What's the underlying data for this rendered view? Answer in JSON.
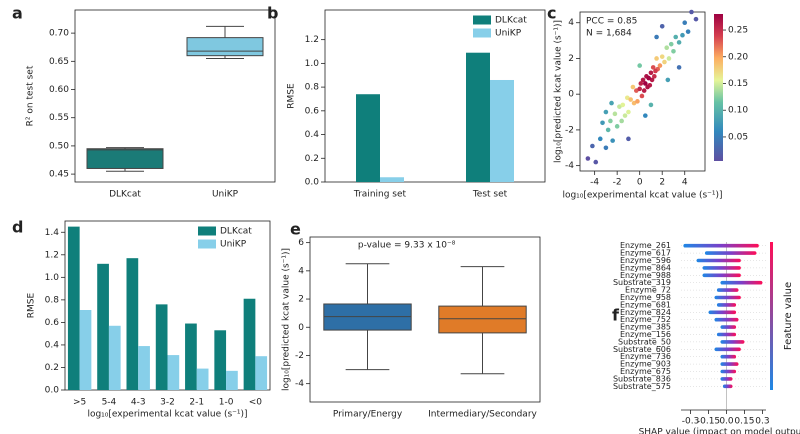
{
  "chart_data": [
    {
      "type": "box",
      "label": "a",
      "ylabel": "R² on test set",
      "categories": [
        "DLKcat",
        "UniKP"
      ],
      "colors": [
        "#1b7b77",
        "#7fc8e0"
      ],
      "boxes": [
        {
          "min": 0.455,
          "q1": 0.46,
          "median": 0.493,
          "q3": 0.495,
          "max": 0.497
        },
        {
          "min": 0.655,
          "q1": 0.66,
          "median": 0.668,
          "q3": 0.692,
          "max": 0.712
        }
      ],
      "ylim": [
        0.436,
        0.741
      ],
      "yticks": [
        0.45,
        {
          "value": 0.5,
          "label": "0.50"
        },
        0.55,
        {
          "value": 0.6,
          "label": "0.60"
        },
        0.65,
        {
          "value": 0.7,
          "label": "0.70"
        }
      ]
    },
    {
      "type": "bar",
      "label": "b",
      "ylabel": "RMSE",
      "categories": [
        "Training set",
        "Test set"
      ],
      "series": [
        {
          "name": "DLKcat",
          "color": "#0f7f7b",
          "values": [
            0.74,
            1.09
          ]
        },
        {
          "name": "UniKP",
          "color": "#87cfe9",
          "values": [
            0.04,
            0.86
          ]
        }
      ],
      "ylim": [
        0,
        1.45
      ],
      "yticks": [
        {
          "value": 0,
          "label": "0.0"
        },
        0.2,
        0.4,
        0.6,
        0.8,
        {
          "value": 1,
          "label": "1.0"
        },
        1.2
      ],
      "legend": "upper right"
    },
    {
      "type": "scatter",
      "label": "c",
      "annotations": [
        "PCC = 0.85",
        "N = 1,684"
      ],
      "xlabel": "log₁₀[experimental kcat value (s⁻¹)]",
      "ylabel": "log₁₀[predicted kcat value (s⁻¹)]",
      "x": [
        -4.6,
        -4.2,
        -3.9,
        -3.5,
        -3.3,
        -3.0,
        -2.8,
        -2.6,
        -2.4,
        -2.2,
        -2.0,
        -1.8,
        -1.6,
        -1.5,
        -1.3,
        -1.1,
        -1.0,
        -0.8,
        -0.6,
        -0.5,
        -0.3,
        -0.2,
        0,
        0.1,
        0.2,
        0.3,
        0.4,
        0.5,
        0.6,
        0.7,
        0.8,
        0.9,
        1.0,
        1.1,
        1.2,
        1.3,
        1.4,
        1.5,
        1.6,
        1.8,
        2.0,
        2.2,
        2.4,
        2.6,
        2.8,
        3.0,
        3.2,
        3.5,
        3.8,
        4.0,
        4.3,
        4.6,
        5.0,
        -2.5,
        -1.0,
        0.5,
        1.5,
        2.5,
        3.5,
        -3.0,
        0,
        1.0,
        2.0
      ],
      "y": [
        -3.6,
        -2.9,
        -3.8,
        -2.5,
        -1.6,
        -3.0,
        -2.0,
        -1.5,
        -2.6,
        -1.1,
        -1.8,
        -0.7,
        -1.5,
        -0.6,
        -1.2,
        -0.2,
        -1.0,
        -0.3,
        0.4,
        -0.5,
        0.2,
        -0.4,
        0.3,
        0.6,
        -0.1,
        0.8,
        0.2,
        0.6,
        1.0,
        0.4,
        0.9,
        0.5,
        1.2,
        0.8,
        1.5,
        1.0,
        1.3,
        2.0,
        1.4,
        1.6,
        2.1,
        1.8,
        2.6,
        2.0,
        2.8,
        2.4,
        3.2,
        2.9,
        3.3,
        4.0,
        3.5,
        4.6,
        4.2,
        -0.5,
        -2.5,
        -1.2,
        3.2,
        0.8,
        1.5,
        -1.0,
        1.6,
        -0.6,
        3.8
      ],
      "xlim": [
        -5.3,
        5.8
      ],
      "xticks": [
        -4,
        -2,
        0,
        2,
        4
      ],
      "ylim": [
        -4.3,
        4.6
      ],
      "yticks": [
        -4,
        -2,
        0,
        2,
        4
      ],
      "colorbar_lim": [
        0.005,
        0.28
      ],
      "colorbar_ticks": [
        0.05,
        {
          "value": 0.1,
          "label": "0.10"
        },
        0.15,
        {
          "value": 0.2,
          "label": "0.20"
        },
        0.25
      ]
    },
    {
      "type": "bar",
      "label": "d",
      "ylabel": "RMSE",
      "xlabel": "log₁₀[experimental kcat value (s⁻¹)]",
      "categories": [
        ">5",
        "5-4",
        "4-3",
        "3-2",
        "2-1",
        "1-0",
        "<0"
      ],
      "series": [
        {
          "name": "DLKcat",
          "color": "#0f7f7b",
          "values": [
            1.45,
            1.12,
            1.17,
            0.76,
            0.59,
            0.53,
            0.81
          ]
        },
        {
          "name": "UniKP",
          "color": "#87cfe9",
          "values": [
            0.71,
            0.57,
            0.39,
            0.31,
            0.19,
            0.17,
            0.3
          ]
        }
      ],
      "ylim": [
        0,
        1.5
      ],
      "yticks": [
        {
          "value": 0,
          "label": "0.0"
        },
        0.2,
        0.4,
        0.6,
        0.8,
        {
          "value": 1,
          "label": "1.0"
        },
        1.2,
        1.4
      ],
      "legend": "upper right"
    },
    {
      "type": "box",
      "label": "e",
      "ylabel": "log₁₀[predicted kcat value (s⁻¹)]",
      "annotation": "p-value = 9.33 x 10⁻⁸",
      "categories": [
        "Primary/Energy",
        "Intermediary/Secondary"
      ],
      "colors": [
        "#2e6fa6",
        "#e07b28"
      ],
      "boxes": [
        {
          "min": -3.0,
          "q1": -0.2,
          "median": 0.75,
          "q3": 1.65,
          "max": 4.5
        },
        {
          "min": -3.3,
          "q1": -0.4,
          "median": 0.6,
          "q3": 1.5,
          "max": 4.3
        }
      ],
      "ylim": [
        -5.3,
        6.4
      ],
      "yticks": [
        -4,
        -2,
        0,
        2,
        4,
        6
      ]
    },
    {
      "type": "beeswarm",
      "label": "f",
      "xlabel": "SHAP value (impact on model output)",
      "colorbar_label": "Feature value",
      "features": [
        "Enzyme_261",
        "Enzyme_617",
        "Enzyme_596",
        "Enzyme_864",
        "Enzyme_988",
        "Substrate_319",
        "Enzyme_72",
        "Enzyme_958",
        "Enzyme_681",
        "Enzyme_824",
        "Enzyme_752",
        "Enzyme_385",
        "Enzyme_156",
        "Substrate_50",
        "Substrate_606",
        "Enzyme_736",
        "Enzyme_903",
        "Enzyme_675",
        "Substrate_836",
        "Substrate_575"
      ],
      "ranges": [
        [
          -0.36,
          0.27
        ],
        [
          -0.18,
          0.25
        ],
        [
          -0.25,
          0.12
        ],
        [
          -0.2,
          0.12
        ],
        [
          -0.2,
          0.12
        ],
        [
          -0.05,
          0.3
        ],
        [
          -0.08,
          0.1
        ],
        [
          -0.1,
          0.12
        ],
        [
          -0.08,
          0.08
        ],
        [
          -0.15,
          0.08
        ],
        [
          -0.1,
          0.1
        ],
        [
          -0.05,
          0.08
        ],
        [
          -0.08,
          0.08
        ],
        [
          -0.05,
          0.15
        ],
        [
          -0.1,
          0.12
        ],
        [
          -0.05,
          0.08
        ],
        [
          -0.05,
          0.1
        ],
        [
          -0.05,
          0.08
        ],
        [
          -0.05,
          0.05
        ],
        [
          -0.03,
          0.05
        ]
      ],
      "xlim": [
        -0.38,
        0.33
      ],
      "xticks": [
        -0.3,
        -0.15,
        {
          "value": 0,
          "label": "0.0"
        },
        0.15,
        0.3
      ]
    }
  ]
}
